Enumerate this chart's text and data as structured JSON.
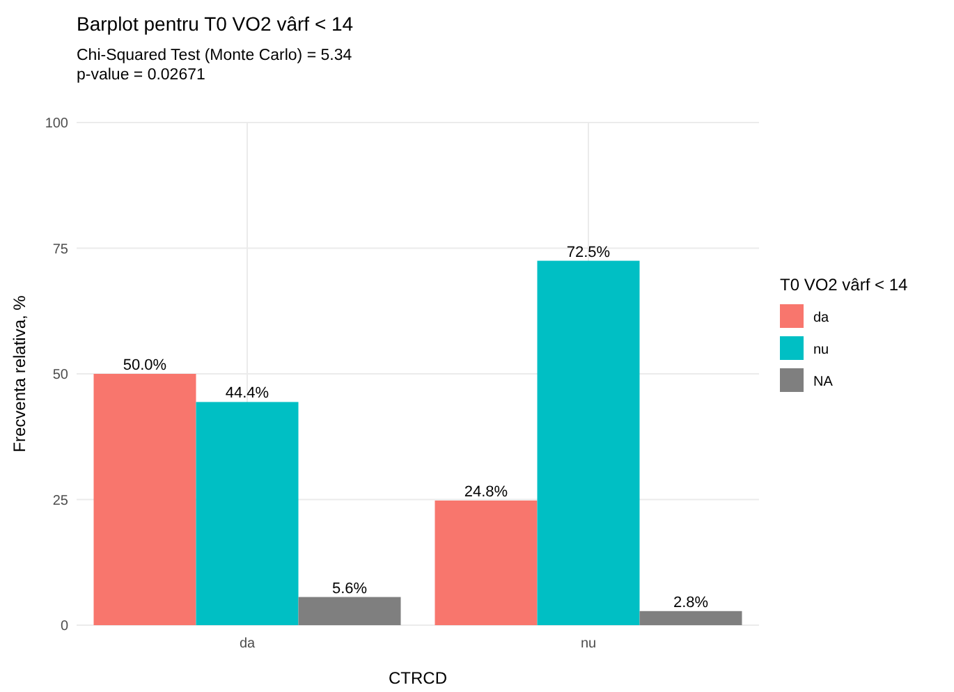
{
  "chart_data": {
    "type": "bar",
    "title": "Barplot pentru T0 VO2 vârf < 14",
    "subtitle": "Chi-Squared Test (Monte Carlo) = 5.34\np-value = 0.02671",
    "xlabel": "CTRCD",
    "ylabel": "Frecventa relativa, %",
    "legend_title": "T0 VO2 vârf < 14",
    "categories": [
      "da",
      "nu"
    ],
    "series": [
      {
        "name": "da",
        "color": "#f8766d",
        "values": [
          50.0,
          24.8
        ],
        "value_labels": [
          "50.0%",
          "24.8%"
        ]
      },
      {
        "name": "nu",
        "color": "#00bfc4",
        "values": [
          44.4,
          72.5
        ],
        "value_labels": [
          "44.4%",
          "72.5%"
        ]
      },
      {
        "name": "NA",
        "color": "#7f7f7f",
        "values": [
          5.6,
          2.8
        ],
        "value_labels": [
          "5.6%",
          "2.8%"
        ]
      }
    ],
    "ylim": [
      0,
      100
    ],
    "yticks": [
      0,
      25,
      50,
      75,
      100
    ],
    "grid": true,
    "legend": "right"
  }
}
